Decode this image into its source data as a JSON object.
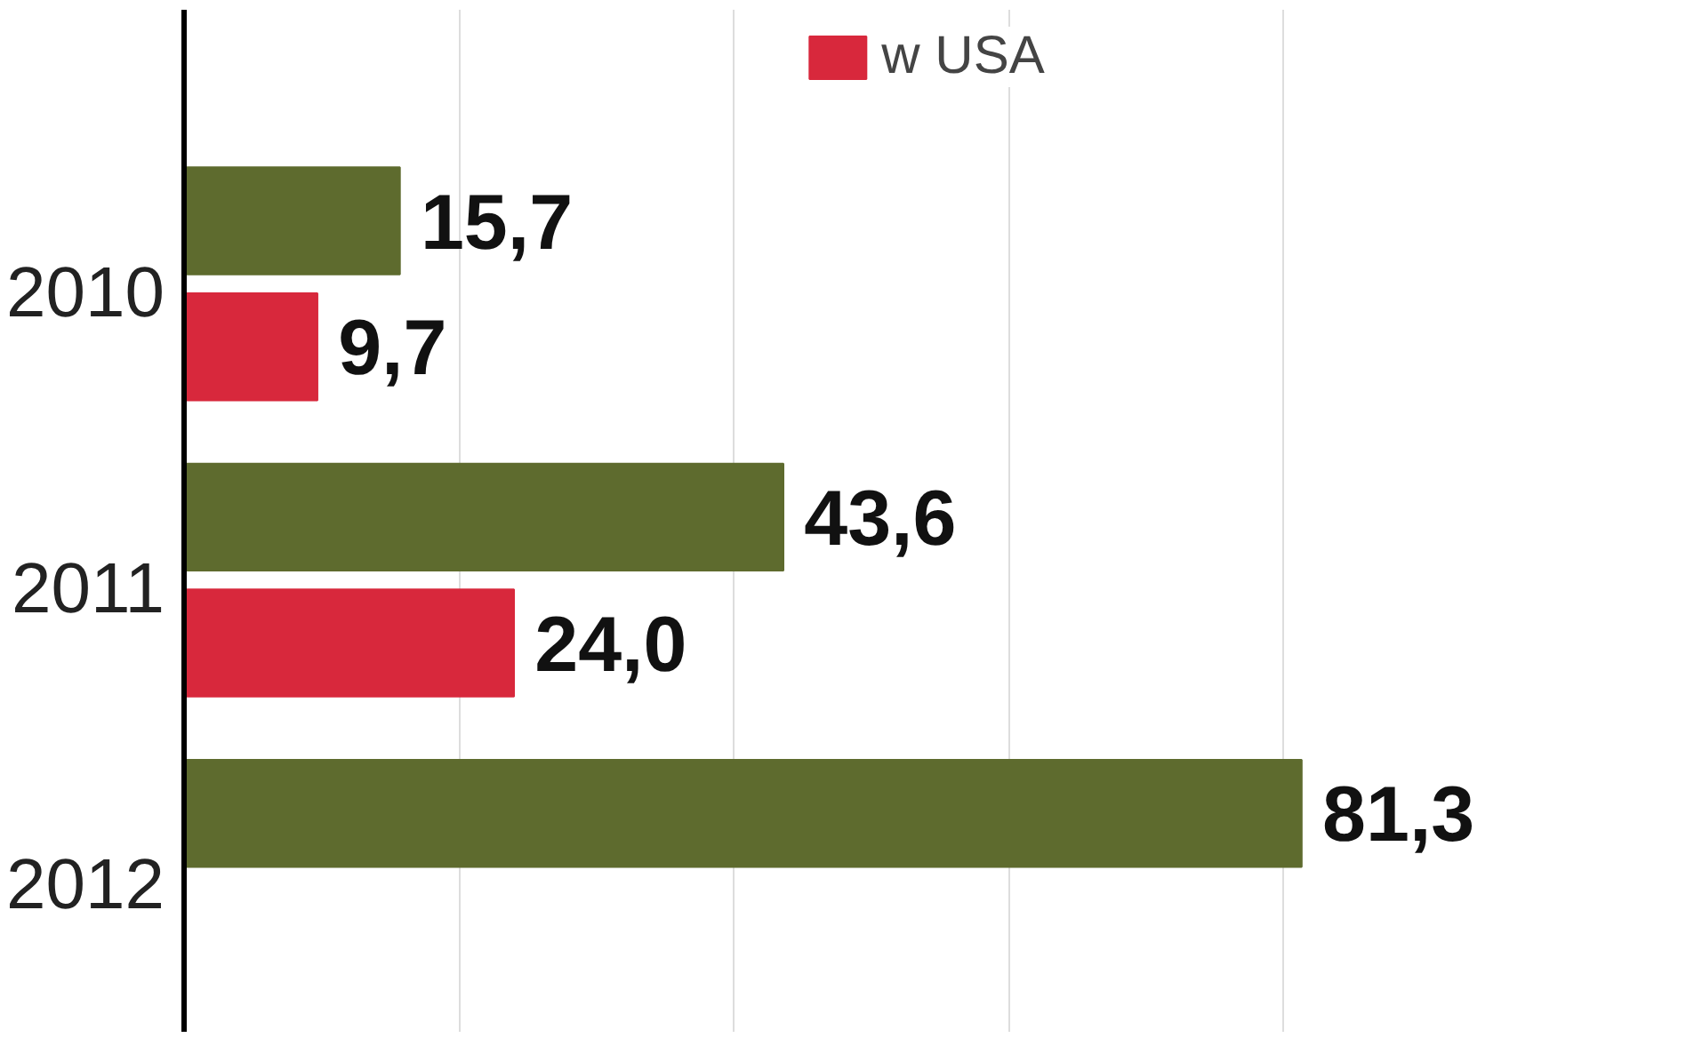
{
  "chart_data": {
    "type": "bar",
    "orientation": "horizontal",
    "categories": [
      "2010",
      "2011",
      "2012"
    ],
    "series": [
      {
        "color": "#5e6b2e",
        "values": [
          15.7,
          43.6,
          81.3
        ],
        "value_labels": [
          "15,7",
          "43,6",
          "81,3"
        ]
      },
      {
        "name": "w USA",
        "color": "#d8283c",
        "values": [
          9.7,
          24.0,
          null
        ],
        "value_labels": [
          "9,7",
          "24,0",
          null
        ]
      }
    ],
    "xticks": [
      {
        "value": 20,
        "label": null
      },
      {
        "value": 40,
        "label": null
      },
      {
        "value": 60,
        "label": null
      },
      {
        "value": 80,
        "label": null
      }
    ],
    "grid": "x",
    "legend": "top",
    "tick_labels": "y"
  }
}
